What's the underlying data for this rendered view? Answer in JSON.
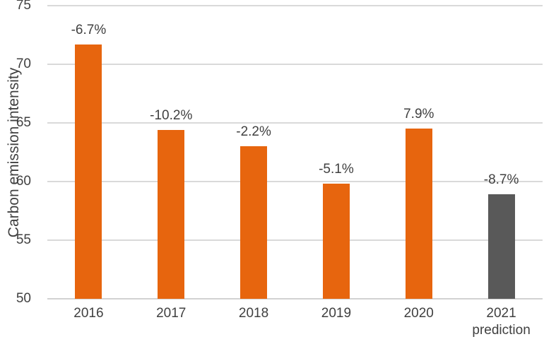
{
  "chart_data": {
    "type": "bar",
    "title": "",
    "ylabel": "Carbon emission intensity",
    "xlabel": "",
    "ylim": [
      50,
      75
    ],
    "yticks": [
      50,
      55,
      60,
      65,
      70,
      75
    ],
    "grid": true,
    "legend": false,
    "categories": [
      "2016",
      "2017",
      "2018",
      "2019",
      "2020",
      "2021\nprediction"
    ],
    "series": [
      {
        "name": "Carbon emission intensity",
        "values": [
          71.7,
          64.4,
          63.0,
          59.8,
          64.5,
          58.9
        ],
        "data_labels": [
          "-6.7%",
          "-10.2%",
          "-2.2%",
          "-5.1%",
          "7.9%",
          "-8.7%"
        ],
        "bar_colors": [
          "#E7650E",
          "#E7650E",
          "#E7650E",
          "#E7650E",
          "#E7650E",
          "#595959"
        ]
      }
    ]
  },
  "colors": {
    "bar_orange": "#E7650E",
    "bar_gray": "#595959",
    "gridline": "#D9D9D9",
    "axis_line": "#D2D2D2",
    "text": "#404040",
    "background": "#FFFFFF"
  }
}
